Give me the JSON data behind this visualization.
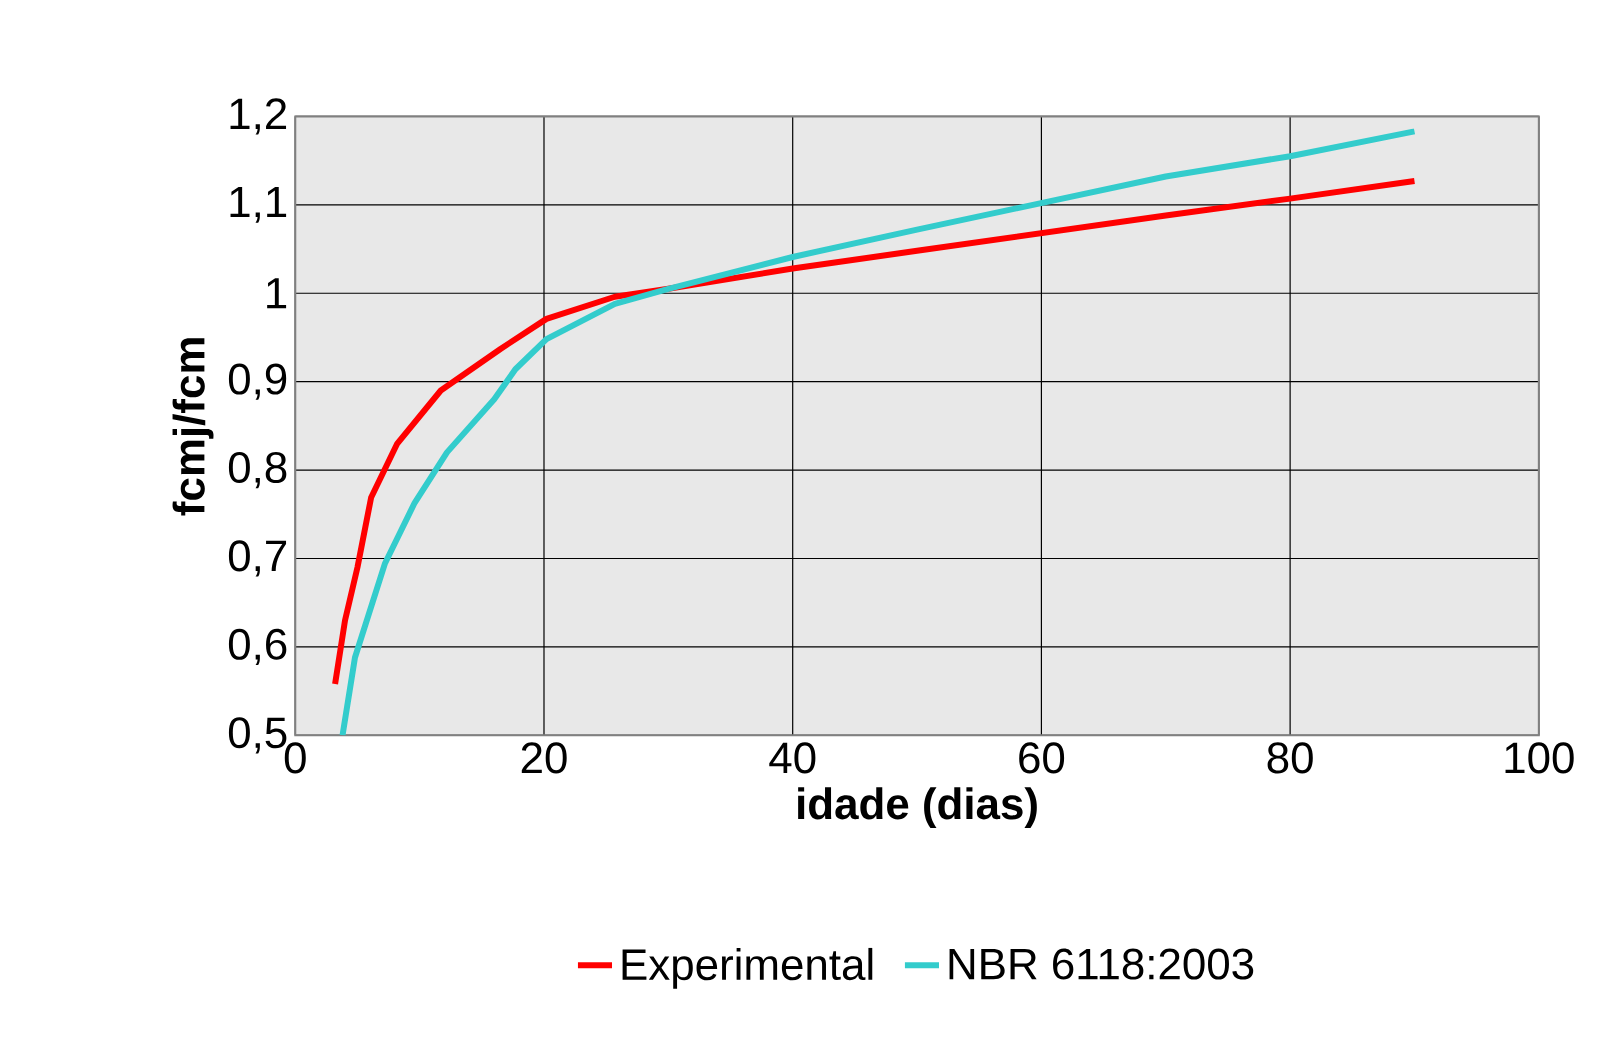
{
  "chart_data": {
    "type": "line",
    "xlabel": "idade (dias)",
    "ylabel": "fcmj/fcm",
    "xlim": [
      0,
      100
    ],
    "xticks": [
      0,
      20,
      40,
      60,
      80,
      100
    ],
    "ylim": [
      0.5,
      1.2
    ],
    "yticks": [
      {
        "value": 0.5,
        "label": "0,5"
      },
      {
        "value": 0.6,
        "label": "0,6"
      },
      {
        "value": 0.7,
        "label": "0,7"
      },
      {
        "value": 0.8,
        "label": "0,8"
      },
      {
        "value": 0.9,
        "label": "0,9"
      },
      {
        "value": 1,
        "label": "1"
      },
      {
        "value": 1.1,
        "label": "1,1"
      },
      {
        "value": 1.2,
        "label": "1,2"
      }
    ],
    "grid": true,
    "legend": "bottom",
    "marker": "none",
    "series": [
      {
        "name": "Experimental",
        "color": "#ff0000",
        "x": [
          3.2,
          4,
          5,
          6.1,
          8.2,
          11.7,
          16.5,
          20.2,
          25.7,
          30,
          40,
          50,
          60,
          70,
          80,
          90
        ],
        "values": [
          0.558,
          0.63,
          0.69,
          0.769,
          0.83,
          0.89,
          0.937,
          0.971,
          0.996,
          1.005,
          1.028,
          1.048,
          1.068,
          1.088,
          1.107,
          1.127
        ]
      },
      {
        "name": "NBR 6118:2003",
        "color": "#33cccc",
        "x": [
          3.8,
          4.8,
          7.2,
          9.6,
          12.2,
          16,
          17.7,
          20.2,
          25.7,
          30,
          40,
          50,
          60,
          70,
          80,
          90
        ],
        "values": [
          0.5,
          0.588,
          0.694,
          0.763,
          0.82,
          0.88,
          0.914,
          0.948,
          0.988,
          1.005,
          1.041,
          1.072,
          1.102,
          1.132,
          1.155,
          1.183
        ]
      }
    ]
  }
}
